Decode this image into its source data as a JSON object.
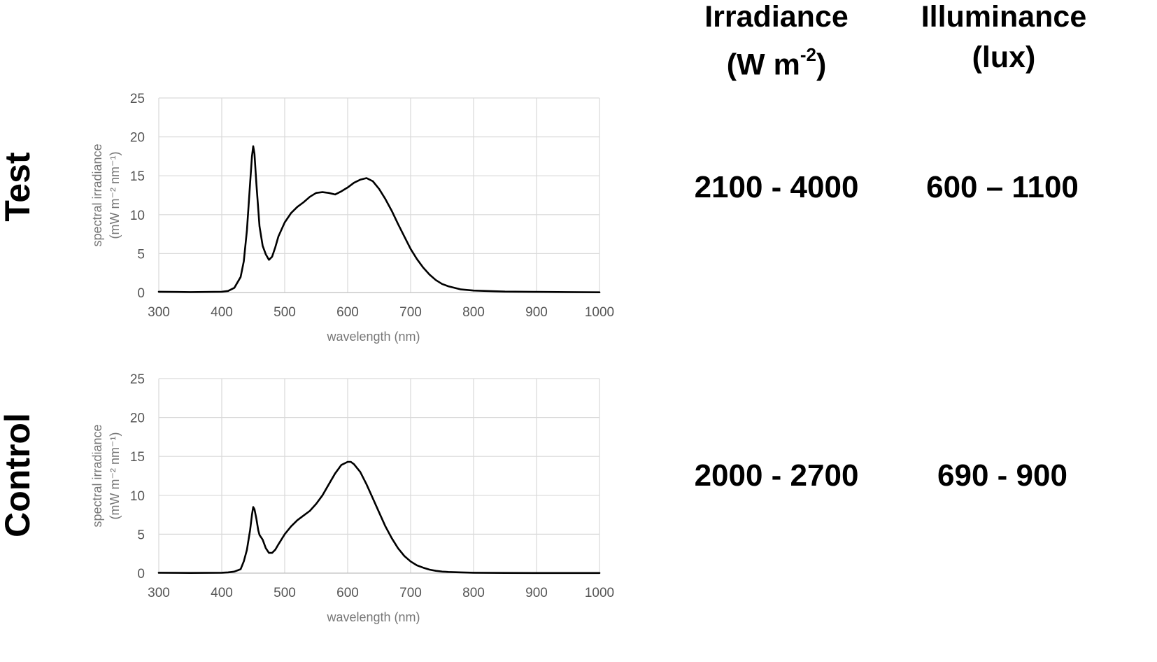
{
  "rows": [
    {
      "label": "Test",
      "irradiance": "2100 - 4000",
      "illuminance": "600 – 1100"
    },
    {
      "label": "Control",
      "irradiance": "2000 - 2700",
      "illuminance": "690 - 900"
    }
  ],
  "columns": {
    "irradiance_line1": "Irradiance",
    "irradiance_line2_pre": "(W m",
    "irradiance_sup": "-2",
    "irradiance_line2_post": ")",
    "illuminance_line1": "Illuminance",
    "illuminance_line2": "(lux)"
  },
  "chart_data": [
    {
      "type": "line",
      "xlabel": "wavelength (nm)",
      "ylabel_line1": "spectral irradiance",
      "ylabel_line2": "(mW m⁻² nm⁻¹)",
      "xlim": [
        300,
        1000
      ],
      "ylim": [
        0,
        25
      ],
      "x_ticks": [
        300,
        400,
        500,
        600,
        700,
        800,
        900,
        1000
      ],
      "y_ticks": [
        0,
        5,
        10,
        15,
        20,
        25
      ],
      "grid": true,
      "series": [
        {
          "x": [
            300,
            350,
            400,
            410,
            420,
            430,
            435,
            440,
            445,
            448,
            450,
            452,
            455,
            460,
            465,
            470,
            475,
            480,
            485,
            490,
            500,
            510,
            520,
            530,
            540,
            550,
            560,
            570,
            580,
            590,
            600,
            610,
            620,
            630,
            640,
            650,
            660,
            670,
            680,
            690,
            700,
            710,
            720,
            730,
            740,
            750,
            760,
            780,
            800,
            850,
            900,
            950,
            1000
          ],
          "y": [
            0.1,
            0.05,
            0.1,
            0.2,
            0.6,
            2.0,
            4.0,
            8.0,
            14.0,
            17.5,
            18.8,
            17.8,
            14.0,
            8.5,
            6.0,
            4.9,
            4.2,
            4.6,
            5.8,
            7.2,
            9.0,
            10.2,
            11.0,
            11.6,
            12.3,
            12.8,
            12.9,
            12.8,
            12.6,
            13.0,
            13.5,
            14.1,
            14.5,
            14.7,
            14.3,
            13.3,
            12.0,
            10.5,
            8.8,
            7.2,
            5.6,
            4.3,
            3.2,
            2.3,
            1.6,
            1.1,
            0.8,
            0.4,
            0.25,
            0.12,
            0.08,
            0.05,
            0.03
          ]
        }
      ]
    },
    {
      "type": "line",
      "xlabel": "wavelength (nm)",
      "ylabel_line1": "spectral irradiance",
      "ylabel_line2": "(mW m⁻² nm⁻¹)",
      "xlim": [
        300,
        1000
      ],
      "ylim": [
        0,
        25
      ],
      "x_ticks": [
        300,
        400,
        500,
        600,
        700,
        800,
        900,
        1000
      ],
      "y_ticks": [
        0,
        5,
        10,
        15,
        20,
        25
      ],
      "grid": true,
      "series": [
        {
          "x": [
            300,
            350,
            400,
            410,
            420,
            430,
            435,
            440,
            445,
            448,
            450,
            452,
            455,
            458,
            460,
            465,
            470,
            475,
            480,
            485,
            490,
            500,
            510,
            520,
            530,
            540,
            550,
            560,
            570,
            580,
            590,
            600,
            605,
            610,
            620,
            630,
            640,
            650,
            660,
            670,
            680,
            690,
            700,
            710,
            720,
            730,
            740,
            750,
            760,
            780,
            800,
            850,
            900,
            950,
            1000
          ],
          "y": [
            0.05,
            0.03,
            0.05,
            0.1,
            0.2,
            0.5,
            1.5,
            3.0,
            5.5,
            7.5,
            8.5,
            8.2,
            7.0,
            5.5,
            4.9,
            4.3,
            3.2,
            2.6,
            2.6,
            3.0,
            3.7,
            5.0,
            6.0,
            6.8,
            7.4,
            8.0,
            8.9,
            10.0,
            11.4,
            12.8,
            13.9,
            14.3,
            14.3,
            14.0,
            13.0,
            11.4,
            9.6,
            7.8,
            6.0,
            4.5,
            3.2,
            2.2,
            1.5,
            1.0,
            0.7,
            0.45,
            0.3,
            0.2,
            0.15,
            0.1,
            0.05,
            0.03,
            0.02,
            0.02,
            0.02
          ]
        }
      ]
    }
  ]
}
